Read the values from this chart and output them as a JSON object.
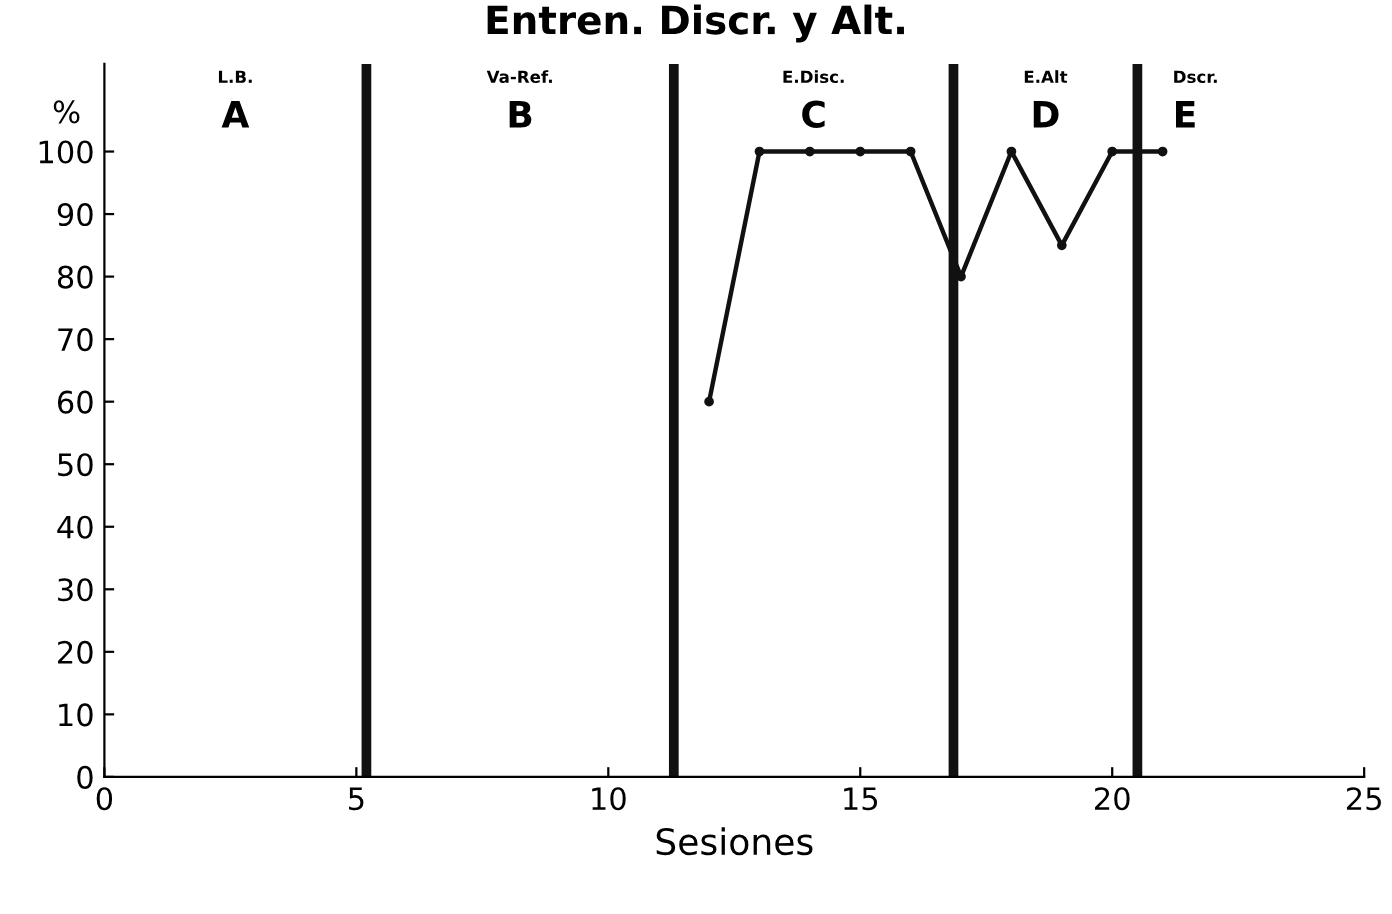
{
  "chart_data": {
    "type": "line",
    "title": "Entren. Discr. y Alt.",
    "xlabel": "Sesiones",
    "ylabel": "%",
    "x": [
      12,
      13,
      14,
      15,
      16,
      17,
      18,
      19,
      20,
      21
    ],
    "series": [
      {
        "color": "#111111",
        "values": [
          60,
          100,
          100,
          100,
          100,
          80,
          100,
          85,
          100,
          100
        ]
      }
    ],
    "xlim": [
      0,
      25
    ],
    "xticks": [
      0,
      5,
      10,
      15,
      20,
      25
    ],
    "ylim": [
      0,
      114
    ],
    "yticks": [
      0,
      10,
      20,
      30,
      40,
      50,
      60,
      70,
      80,
      90,
      100
    ],
    "ref_lines": [
      {
        "axis": "x",
        "value": 5.2,
        "color": "#111111"
      },
      {
        "axis": "x",
        "value": 11.3,
        "color": "#111111"
      },
      {
        "axis": "x",
        "value": 16.85,
        "color": "#111111"
      },
      {
        "axis": "x",
        "value": 20.5,
        "color": "#111111"
      }
    ],
    "annotations": [
      "L.B.",
      "A",
      "Va-Ref.",
      "B",
      "E.Disc.",
      "C",
      "E.Alt",
      "D",
      "Dscr.",
      "E"
    ],
    "grid": false,
    "marker": "circle",
    "line_style": "solid"
  }
}
